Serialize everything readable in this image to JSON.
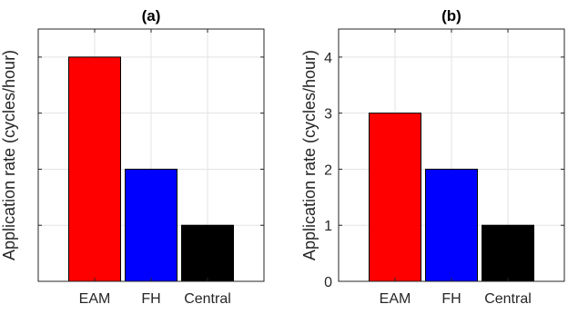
{
  "chart_data": [
    {
      "type": "bar",
      "title": "(a)",
      "ylabel": "Application rate (cycles/hour)",
      "xlabel": "",
      "categories": [
        "EAM",
        "FH",
        "Central"
      ],
      "values": [
        4,
        2,
        1
      ],
      "colors": [
        "#ff0000",
        "#0000ff",
        "#000000"
      ],
      "ylim": [
        0,
        4.5
      ],
      "yticks": [
        0,
        1,
        2,
        3,
        4
      ],
      "yticklabels_shown": false,
      "grid": true
    },
    {
      "type": "bar",
      "title": "(b)",
      "ylabel": "Application rate (cycles/hour)",
      "xlabel": "",
      "categories": [
        "EAM",
        "FH",
        "Central"
      ],
      "values": [
        3,
        2,
        1
      ],
      "colors": [
        "#ff0000",
        "#0000ff",
        "#000000"
      ],
      "ylim": [
        0,
        4.5
      ],
      "yticks": [
        0,
        1,
        2,
        3,
        4
      ],
      "yticklabels": [
        "0",
        "1",
        "2",
        "3",
        "4"
      ],
      "yticklabels_shown": true,
      "grid": true
    }
  ]
}
